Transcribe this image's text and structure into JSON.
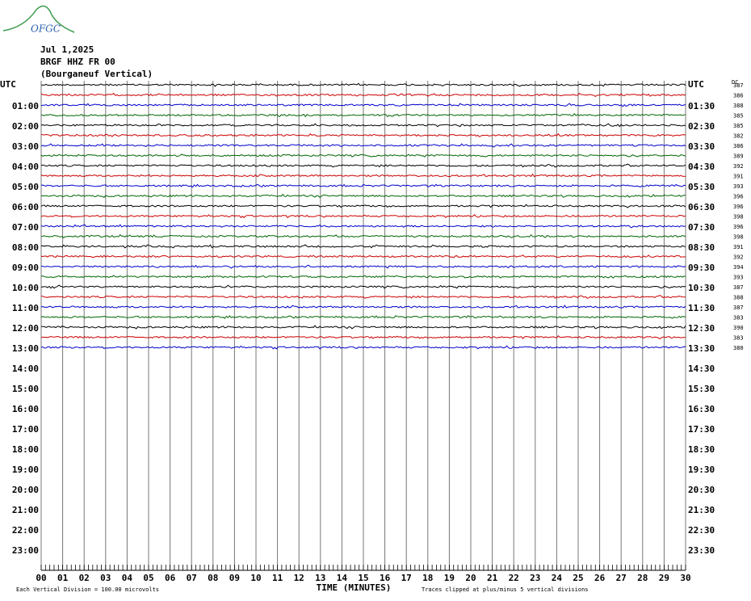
{
  "chart_data": {
    "type": "helicorder",
    "logo": "OFGC",
    "date": "Jul 1,2025",
    "station": "BRGF HHZ FR 00",
    "station_name": "(Bourganeuf Vertical)",
    "left_labels": [
      "UTC",
      "01:00",
      "02:00",
      "03:00",
      "04:00",
      "05:00",
      "06:00",
      "07:00",
      "08:00",
      "09:00",
      "10:00",
      "11:00",
      "12:00",
      "13:00",
      "14:00",
      "15:00",
      "16:00",
      "17:00",
      "18:00",
      "19:00",
      "20:00",
      "21:00",
      "22:00",
      "23:00"
    ],
    "right_labels": [
      "UTC",
      "01:30",
      "02:30",
      "03:30",
      "04:30",
      "05:30",
      "06:30",
      "07:30",
      "08:30",
      "09:30",
      "10:30",
      "11:30",
      "12:30",
      "13:30",
      "14:30",
      "15:30",
      "16:30",
      "17:30",
      "18:30",
      "19:30",
      "20:30",
      "21:30",
      "22:30",
      "23:30"
    ],
    "dc_label": "DC",
    "dc_values": [
      387,
      386,
      388,
      385,
      385,
      382,
      386,
      389,
      392,
      391,
      393,
      396,
      396,
      398,
      396,
      398,
      391,
      392,
      394,
      393,
      387,
      388,
      387,
      383,
      390,
      383,
      380
    ],
    "trace_colors": [
      "#000000",
      "#cc0000",
      "#0000cc",
      "#006600"
    ],
    "xlabel": "TIME (MINUTES)",
    "xlim": [
      0,
      30
    ],
    "xticks": [
      {
        "value": 0,
        "label": "00"
      },
      {
        "value": 1,
        "label": "01"
      },
      {
        "value": 2,
        "label": "02"
      },
      {
        "value": 3,
        "label": "03"
      },
      {
        "value": 4,
        "label": "04"
      },
      {
        "value": 5,
        "label": "05"
      },
      {
        "value": 6,
        "label": "06"
      },
      {
        "value": 7,
        "label": "07"
      },
      {
        "value": 8,
        "label": "08"
      },
      {
        "value": 9,
        "label": "09"
      },
      10,
      11,
      12,
      13,
      14,
      15,
      16,
      17,
      18,
      19,
      20,
      21,
      22,
      23,
      24,
      25,
      26,
      27,
      28,
      29,
      30
    ],
    "scale_note": "Each Vertical Division =  100.00 microvolts",
    "clip_note": "Traces clipped at plus/minus 5 vertical divisions"
  }
}
